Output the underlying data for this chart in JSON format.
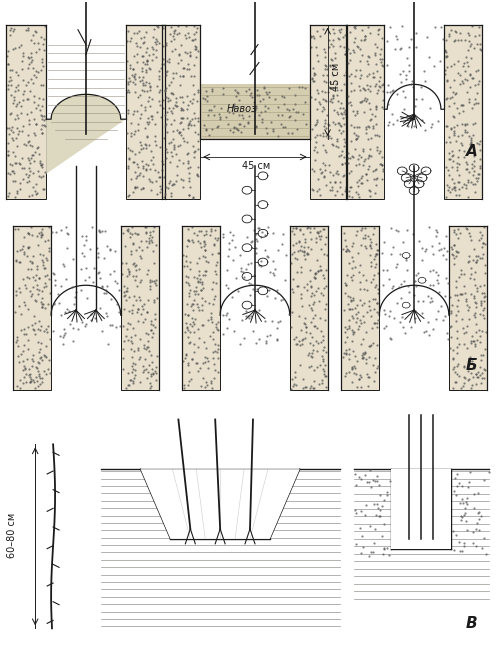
{
  "bg_color": "#f0ece0",
  "line_color": "#1a1a1a",
  "label_A": "A",
  "label_B": "Б",
  "label_V": "В",
  "text_navoz": "Навоз",
  "text_45cm_horiz": "45 см",
  "text_45cm_vert": "45 см",
  "text_6080": "60–80 см",
  "figsize": [
    5.0,
    6.62
  ],
  "dpi": 100
}
